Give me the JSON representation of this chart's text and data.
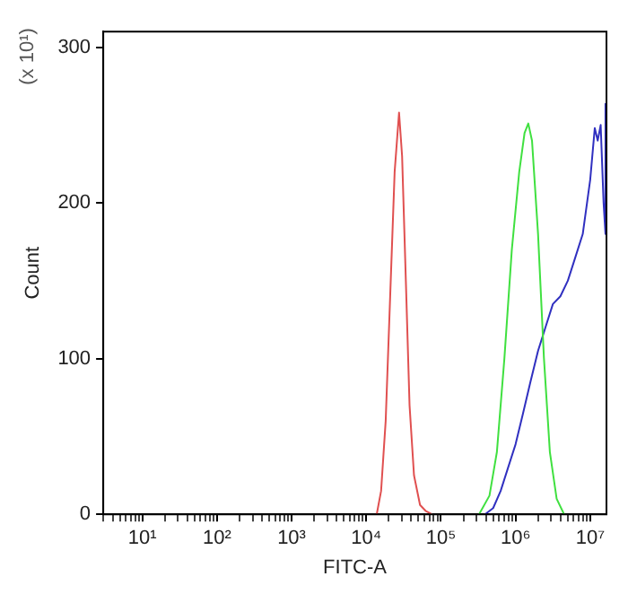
{
  "chart_data": {
    "type": "line",
    "xlabel": "FITC-A",
    "ylabel": "Count",
    "annotations": [
      "(x 10¹)"
    ],
    "log": "x",
    "grid": false,
    "legend": false,
    "marker": "none",
    "line_style": "solid",
    "xlim": [
      3,
      16500000
    ],
    "ylim": [
      0,
      310
    ],
    "yticks": [
      0,
      100,
      200,
      300
    ],
    "xticks": [
      {
        "value": 3,
        "label": null
      },
      {
        "value": 4,
        "label": null
      },
      {
        "value": 5,
        "label": null
      },
      {
        "value": 6,
        "label": null
      },
      {
        "value": 7,
        "label": null
      },
      {
        "value": 8,
        "label": null
      },
      {
        "value": 9,
        "label": null
      },
      {
        "value": 10,
        "label": "10¹"
      },
      {
        "value": 20,
        "label": null
      },
      {
        "value": 30,
        "label": null
      },
      {
        "value": 40,
        "label": null
      },
      {
        "value": 50,
        "label": null
      },
      {
        "value": 60,
        "label": null
      },
      {
        "value": 70,
        "label": null
      },
      {
        "value": 80,
        "label": null
      },
      {
        "value": 90,
        "label": null
      },
      {
        "value": 100,
        "label": "10²"
      },
      {
        "value": 200,
        "label": null
      },
      {
        "value": 300,
        "label": null
      },
      {
        "value": 400,
        "label": null
      },
      {
        "value": 500,
        "label": null
      },
      {
        "value": 600,
        "label": null
      },
      {
        "value": 700,
        "label": null
      },
      {
        "value": 800,
        "label": null
      },
      {
        "value": 900,
        "label": null
      },
      {
        "value": 1000,
        "label": "10³"
      },
      {
        "value": 2000,
        "label": null
      },
      {
        "value": 3000,
        "label": null
      },
      {
        "value": 4000,
        "label": null
      },
      {
        "value": 5000,
        "label": null
      },
      {
        "value": 6000,
        "label": null
      },
      {
        "value": 7000,
        "label": null
      },
      {
        "value": 8000,
        "label": null
      },
      {
        "value": 9000,
        "label": null
      },
      {
        "value": 10000,
        "label": "10⁴"
      },
      {
        "value": 20000,
        "label": null
      },
      {
        "value": 30000,
        "label": null
      },
      {
        "value": 40000,
        "label": null
      },
      {
        "value": 50000,
        "label": null
      },
      {
        "value": 60000,
        "label": null
      },
      {
        "value": 70000,
        "label": null
      },
      {
        "value": 80000,
        "label": null
      },
      {
        "value": 90000,
        "label": null
      },
      {
        "value": 100000,
        "label": "10⁵"
      },
      {
        "value": 200000,
        "label": null
      },
      {
        "value": 300000,
        "label": null
      },
      {
        "value": 400000,
        "label": null
      },
      {
        "value": 500000,
        "label": null
      },
      {
        "value": 600000,
        "label": null
      },
      {
        "value": 700000,
        "label": null
      },
      {
        "value": 800000,
        "label": null
      },
      {
        "value": 900000,
        "label": null
      },
      {
        "value": 1000000,
        "label": "10⁶"
      },
      {
        "value": 2000000,
        "label": null
      },
      {
        "value": 3000000,
        "label": null
      },
      {
        "value": 4000000,
        "label": null
      },
      {
        "value": 5000000,
        "label": null
      },
      {
        "value": 6000000,
        "label": null
      },
      {
        "value": 7000000,
        "label": null
      },
      {
        "value": 8000000,
        "label": null
      },
      {
        "value": 9000000,
        "label": null
      },
      {
        "value": 10000000,
        "label": "10⁷"
      }
    ],
    "series": [
      {
        "color": "#e05050",
        "x": [
          13800,
          15800,
          18200,
          20900,
          24000,
          27500,
          30200,
          33900,
          38000,
          43600,
          52500,
          63100,
          75900
        ],
        "values": [
          0,
          15,
          60,
          140,
          220,
          258,
          230,
          150,
          70,
          25,
          6,
          2,
          0
        ]
      },
      {
        "color": "#40e040",
        "x": [
          324000,
          447000,
          562000,
          708000,
          891000,
          1120000,
          1320000,
          1480000,
          1660000,
          2000000,
          2400000,
          2880000,
          3550000,
          4470000
        ],
        "values": [
          0,
          12,
          40,
          100,
          170,
          220,
          245,
          251,
          240,
          180,
          100,
          40,
          10,
          0
        ]
      },
      {
        "color": "#3030c0",
        "x": [
          389000,
          501000,
          631000,
          794000,
          1000000,
          1260000,
          1580000,
          2000000,
          2510000,
          3160000,
          3980000,
          5010000,
          6310000,
          7940000,
          10000000,
          11500000,
          12600000,
          13800000,
          15100000,
          16000000,
          16000000
        ],
        "values": [
          0,
          4,
          15,
          30,
          45,
          65,
          85,
          105,
          120,
          135,
          140,
          150,
          165,
          180,
          215,
          248,
          240,
          250,
          200,
          180,
          264
        ]
      }
    ]
  }
}
